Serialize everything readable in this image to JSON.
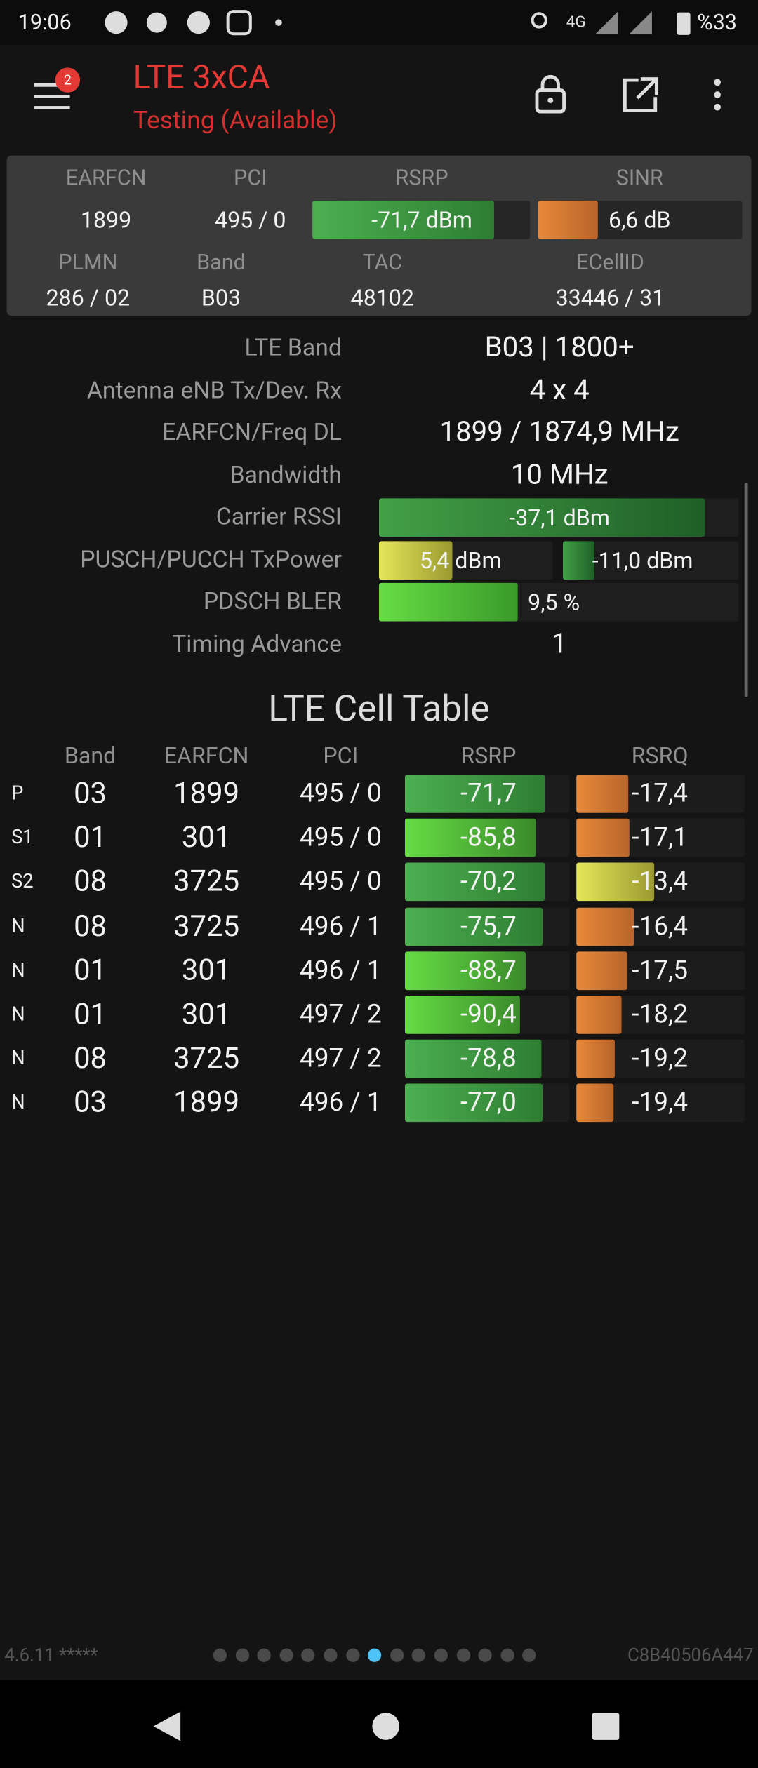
{
  "status_bar": {
    "time": "19:06",
    "network": "4G",
    "battery": "%33"
  },
  "app_bar": {
    "title": "LTE 3xCA",
    "subtitle": "Testing (Available)",
    "badge": "2"
  },
  "summary": {
    "headers1": [
      "EARFCN",
      "PCI",
      "RSRP",
      "SINR"
    ],
    "values1": [
      "1899",
      "495 / 0",
      "-71,7 dBm",
      "6,6 dB"
    ],
    "headers2": [
      "PLMN",
      "Band",
      "TAC",
      "ECellID"
    ],
    "values2": [
      "286 / 02",
      "B03",
      "48102",
      "33446 / 31"
    ]
  },
  "details": [
    {
      "label": "LTE Band",
      "values": [
        "B03 | 1800+"
      ]
    },
    {
      "label": "Antenna eNB Tx/Dev. Rx",
      "values": [
        "4 x 4"
      ]
    },
    {
      "label": "EARFCN/Freq DL",
      "values": [
        "1899 / 1874,9 MHz"
      ]
    },
    {
      "label": "Bandwidth",
      "values": [
        "10 MHz"
      ]
    },
    {
      "label": "Carrier RSSI",
      "values": [
        "-37,1 dBm"
      ]
    },
    {
      "label": "PUSCH/PUCCH TxPower",
      "values": [
        "5,4 dBm",
        "-11,0 dBm"
      ]
    },
    {
      "label": "PDSCH BLER",
      "values": [
        "9,5 %"
      ]
    },
    {
      "label": "Timing Advance",
      "values": [
        "1"
      ]
    }
  ],
  "cell_table": {
    "title": "LTE Cell Table",
    "columns": [
      "Band",
      "EARFCN",
      "PCI",
      "RSRP",
      "RSRQ"
    ],
    "rows": [
      [
        "P",
        "03",
        "1899",
        "495 / 0",
        "-71,7",
        "-17,4"
      ],
      [
        "S1",
        "01",
        "301",
        "495 / 0",
        "-85,8",
        "-17,1"
      ],
      [
        "S2",
        "08",
        "3725",
        "495 / 0",
        "-70,2",
        "-13,4"
      ],
      [
        "N",
        "08",
        "3725",
        "496 / 1",
        "-75,7",
        "-16,4"
      ],
      [
        "N",
        "01",
        "301",
        "496 / 1",
        "-88,7",
        "-17,5"
      ],
      [
        "N",
        "01",
        "301",
        "497 / 2",
        "-90,4",
        "-18,2"
      ],
      [
        "N",
        "08",
        "3725",
        "497 / 2",
        "-78,8",
        "-19,2"
      ],
      [
        "N",
        "03",
        "1899",
        "496 / 1",
        "-77,0",
        "-19,4"
      ]
    ]
  },
  "footer": {
    "version": "4.6.11 *****",
    "device_id": "C8B40506A447"
  }
}
